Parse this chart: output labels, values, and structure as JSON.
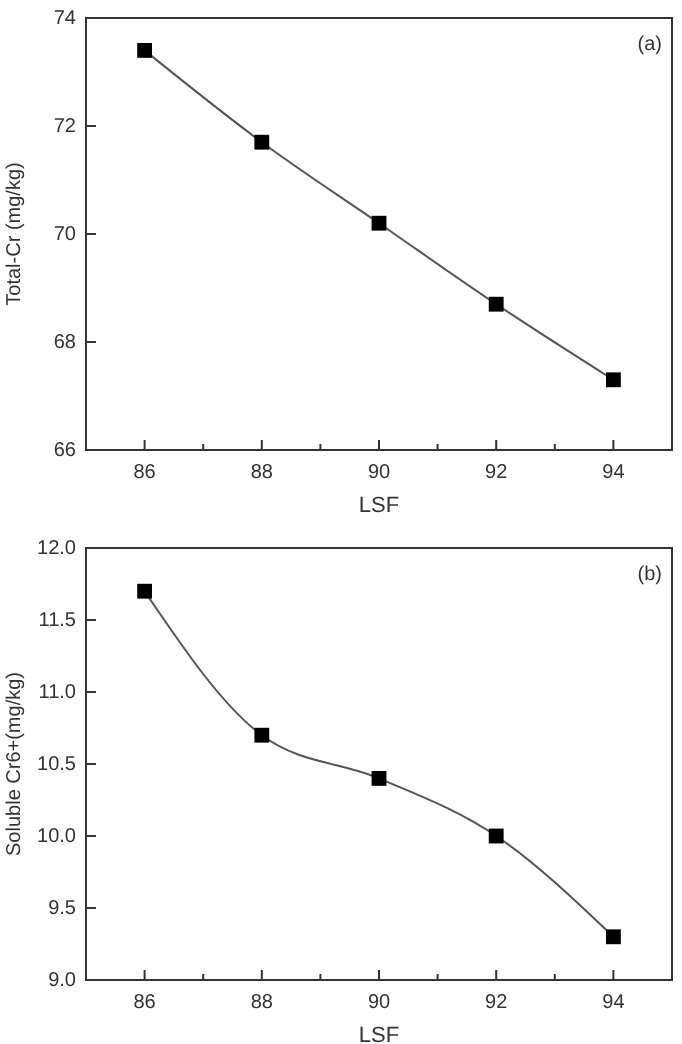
{
  "chart_data": [
    {
      "type": "line",
      "xlabel": "LSF",
      "ylabel": "Total-Cr (mg/kg)",
      "annotations": [
        "(a)"
      ],
      "x": [
        86,
        88,
        90,
        92,
        94
      ],
      "series": [
        {
          "color": "#000000",
          "values": [
            73.4,
            71.7,
            70.2,
            68.7,
            67.3
          ]
        }
      ],
      "xlim": [
        85,
        95
      ],
      "xticks": [
        86,
        {
          "value": 87,
          "label": null
        },
        88,
        {
          "value": 89,
          "label": null
        },
        90,
        {
          "value": 91,
          "label": null
        },
        92,
        {
          "value": 93,
          "label": null
        },
        94
      ],
      "ylim": [
        66,
        74
      ],
      "yticks": [
        66,
        68,
        70,
        72,
        74
      ],
      "marker": "square",
      "line_style": "solid",
      "grid": false
    },
    {
      "type": "line",
      "xlabel": "LSF",
      "ylabel": "Soluble Cr6+(mg/kg)",
      "annotations": [
        "(b)"
      ],
      "x": [
        86,
        88,
        90,
        92,
        94
      ],
      "series": [
        {
          "color": "#000000",
          "values": [
            11.7,
            10.7,
            10.4,
            10.0,
            9.3
          ]
        }
      ],
      "xlim": [
        85,
        95
      ],
      "xticks": [
        86,
        {
          "value": 87,
          "label": null
        },
        88,
        {
          "value": 89,
          "label": null
        },
        90,
        {
          "value": 91,
          "label": null
        },
        92,
        {
          "value": 93,
          "label": null
        },
        94
      ],
      "ylim": [
        9,
        12
      ],
      "yticks": [
        {
          "value": 9,
          "label": "9.0"
        },
        9.5,
        {
          "value": 10,
          "label": "10.0"
        },
        10.5,
        {
          "value": 11,
          "label": "11.0"
        },
        11.5,
        {
          "value": 12,
          "label": "12.0"
        }
      ],
      "marker": "square",
      "line_style": "solid",
      "grid": false
    }
  ]
}
